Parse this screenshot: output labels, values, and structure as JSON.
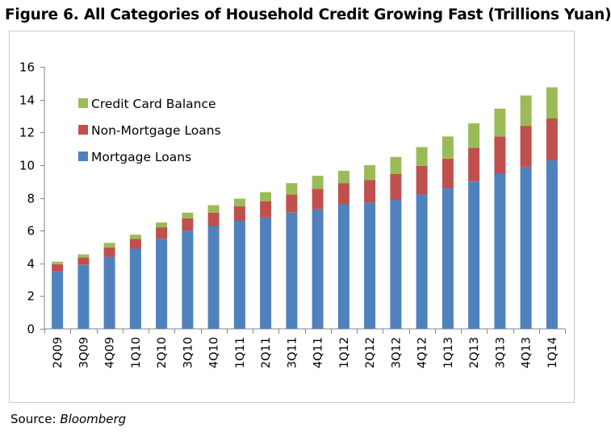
{
  "figure_title": "Figure 6. All Categories of Household Credit Growing Fast (Trillions Yuan)",
  "source": {
    "label": "Source: ",
    "name": "Bloomberg"
  },
  "colors": {
    "mortgage": "#4f81bd",
    "non_mortgage": "#c0504d",
    "credit_card": "#9bbb59",
    "axis": "#868686"
  },
  "chart_data": {
    "type": "bar",
    "stacked": true,
    "title": "",
    "xlabel": "",
    "ylabel": "",
    "ylim": [
      0,
      16
    ],
    "yticks": [
      0,
      2,
      4,
      6,
      8,
      10,
      12,
      14,
      16
    ],
    "grid": false,
    "legend_position": "top-left",
    "categories": [
      "2Q09",
      "3Q09",
      "4Q09",
      "1Q10",
      "2Q10",
      "3Q10",
      "4Q10",
      "1Q11",
      "2Q11",
      "3Q11",
      "4Q11",
      "1Q12",
      "2Q12",
      "3Q12",
      "4Q12",
      "1Q13",
      "2Q13",
      "3Q13",
      "4Q13",
      "1Q14"
    ],
    "series": [
      {
        "name": "Mortgage Loans",
        "values": [
          3.5,
          3.9,
          4.4,
          4.9,
          5.5,
          6.0,
          6.3,
          6.6,
          6.8,
          7.1,
          7.3,
          7.6,
          7.7,
          7.9,
          8.2,
          8.6,
          9.0,
          9.5,
          9.9,
          10.3
        ]
      },
      {
        "name": "Non-Mortgage Loans",
        "values": [
          0.45,
          0.45,
          0.55,
          0.6,
          0.7,
          0.75,
          0.8,
          0.9,
          1.0,
          1.1,
          1.25,
          1.3,
          1.4,
          1.55,
          1.75,
          1.8,
          2.05,
          2.25,
          2.5,
          2.55
        ]
      },
      {
        "name": "Credit Card Balance",
        "values": [
          0.15,
          0.2,
          0.3,
          0.25,
          0.3,
          0.35,
          0.45,
          0.45,
          0.55,
          0.7,
          0.8,
          0.75,
          0.9,
          1.05,
          1.15,
          1.35,
          1.5,
          1.7,
          1.85,
          1.9
        ]
      }
    ],
    "legend_order": [
      "Credit Card Balance",
      "Non-Mortgage Loans",
      "Mortgage Loans"
    ]
  }
}
